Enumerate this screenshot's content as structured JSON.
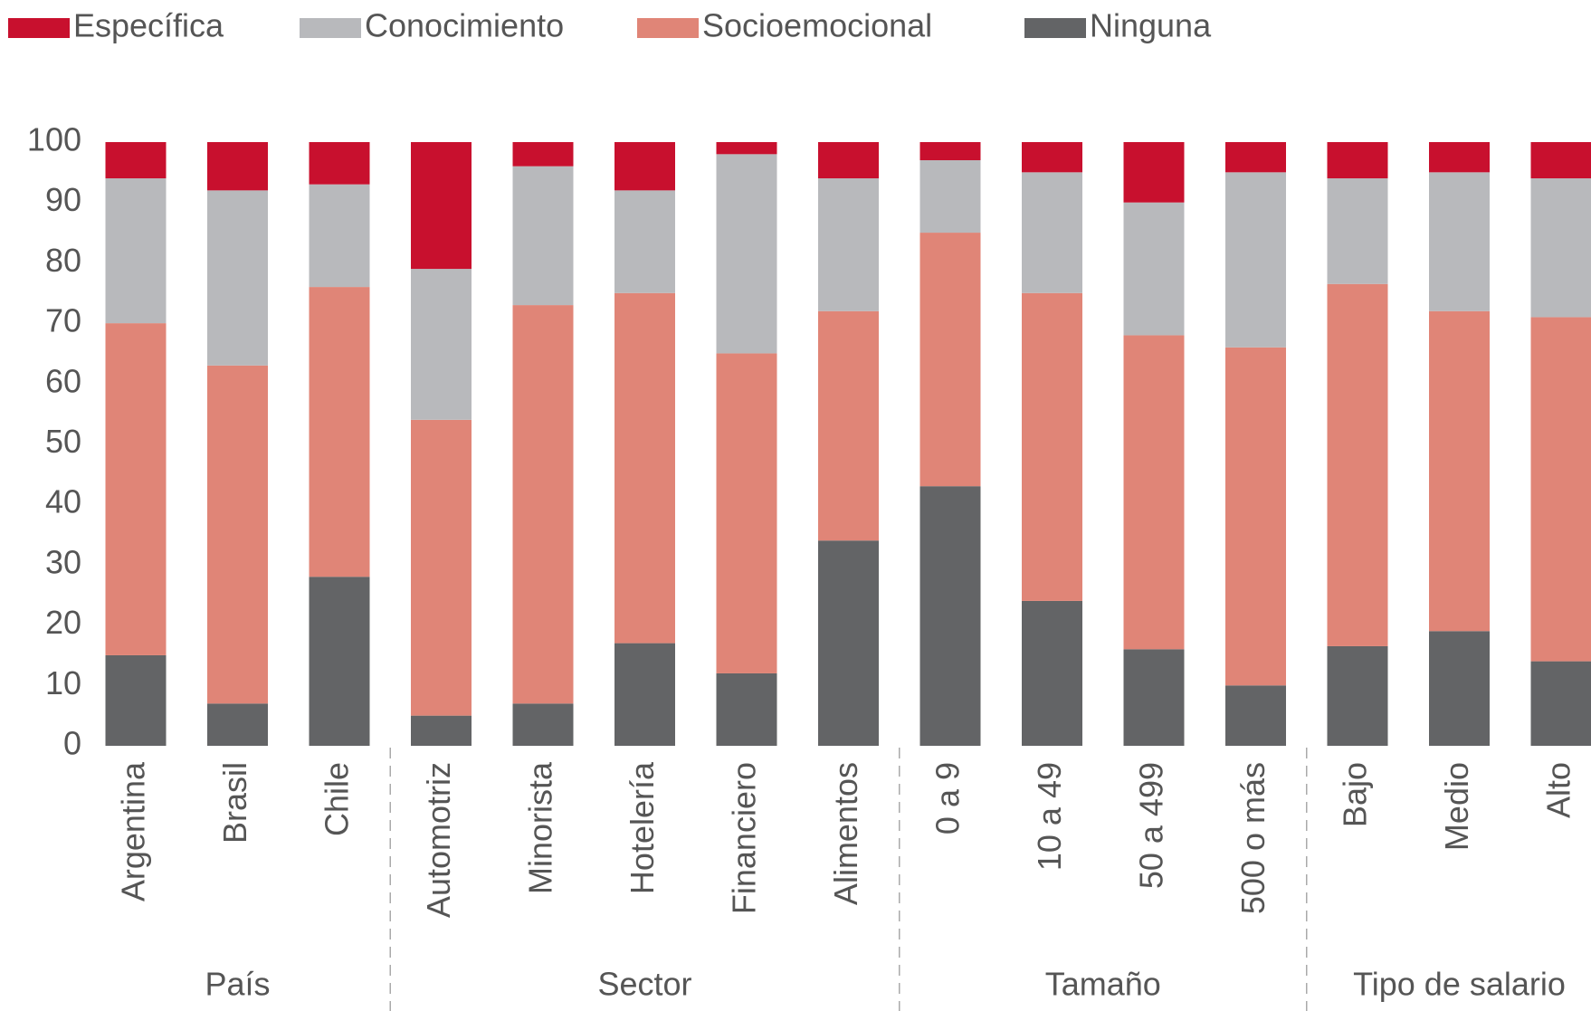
{
  "chart_data": {
    "type": "stacked_bar",
    "groups": [
      {
        "name": "País",
        "categories": [
          "Argentina",
          "Brasil",
          "Chile"
        ]
      },
      {
        "name": "Sector",
        "categories": [
          "Automotriz",
          "Minorista",
          "Hotelería",
          "Financiero",
          "Alimentos"
        ]
      },
      {
        "name": "Tamaño",
        "categories": [
          "0 a 9",
          "10 a 49",
          "50 a 499",
          "500 o más"
        ]
      },
      {
        "name": "Tipo de salario",
        "categories": [
          "Bajo",
          "Medio",
          "Alto"
        ]
      }
    ],
    "series": [
      {
        "name": "Ninguna",
        "color": "#636466",
        "values": [
          15,
          7,
          28,
          5,
          7,
          17,
          12,
          34,
          43,
          24,
          16,
          10,
          16.5,
          19,
          14
        ]
      },
      {
        "name": "Socioemocional",
        "color": "#e08577",
        "values": [
          55,
          56,
          48,
          49,
          66,
          58,
          53,
          38,
          42,
          51,
          52,
          56,
          60,
          53,
          57
        ]
      },
      {
        "name": "Conocimiento",
        "color": "#b8b9bc",
        "values": [
          24,
          29,
          17,
          25,
          23,
          17,
          33,
          22,
          12,
          20,
          22,
          29,
          17.5,
          23,
          23
        ]
      },
      {
        "name": "Específica",
        "color": "#c8102e",
        "values": [
          6,
          8,
          7,
          21,
          4,
          8,
          2,
          6,
          3,
          5,
          10,
          5,
          6,
          5,
          6
        ]
      }
    ],
    "legend_order": [
      3,
      2,
      1,
      0
    ],
    "ylim": [
      0,
      100
    ],
    "yticks": [
      0,
      10,
      20,
      30,
      40,
      50,
      60,
      70,
      80,
      90,
      100
    ],
    "grid": false
  }
}
